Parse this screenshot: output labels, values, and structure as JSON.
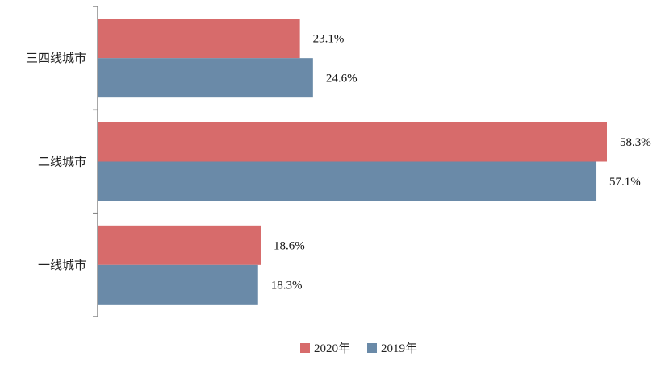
{
  "chart_data": {
    "type": "bar",
    "orientation": "horizontal",
    "categories": [
      "一线城市",
      "二线城市",
      "三四线城市"
    ],
    "series": [
      {
        "name": "2020年",
        "color": "#d76b6b",
        "values": [
          18.6,
          58.3,
          23.1
        ],
        "labels": [
          "18.6%",
          "58.3%",
          "23.1%"
        ]
      },
      {
        "name": "2019年",
        "color": "#6a8aa8",
        "values": [
          18.3,
          57.1,
          24.6
        ],
        "labels": [
          "18.3%",
          "57.1%",
          "24.6%"
        ]
      }
    ],
    "xlim": [
      0,
      60
    ],
    "grid": false,
    "legend_position": "bottom"
  }
}
